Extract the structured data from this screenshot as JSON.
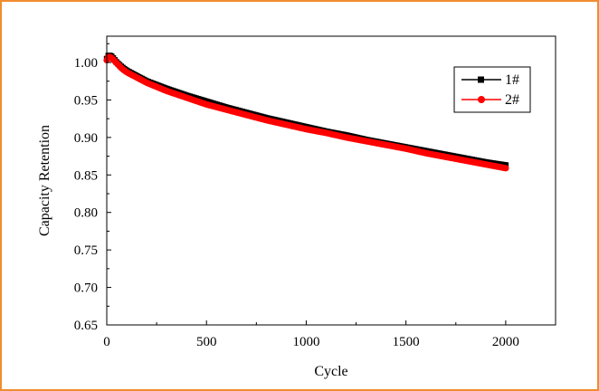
{
  "chart_data": {
    "type": "scatter",
    "title": "",
    "xlabel": "Cycle",
    "ylabel": "Capacity Retention",
    "xlim": [
      0,
      2250
    ],
    "ylim": [
      0.65,
      1.035
    ],
    "x_ticks": [
      0,
      500,
      1000,
      1500,
      2000
    ],
    "x_tick_labels": [
      "0",
      "500",
      "1000",
      "1500",
      "2000"
    ],
    "y_ticks": [
      0.65,
      0.7,
      0.75,
      0.8,
      0.85,
      0.9,
      0.95,
      1.0
    ],
    "y_tick_labels": [
      "0.65",
      "0.70",
      "0.75",
      "0.80",
      "0.85",
      "0.90",
      "0.95",
      "1.00"
    ],
    "grid": false,
    "legend_position": "top-right",
    "series": [
      {
        "name": "1#",
        "color": "#000000",
        "marker": "square",
        "x": [
          0,
          10,
          25,
          50,
          75,
          100,
          150,
          200,
          300,
          400,
          500,
          600,
          700,
          800,
          900,
          1000,
          1100,
          1200,
          1300,
          1400,
          1500,
          1600,
          1700,
          1800,
          1900,
          2000
        ],
        "y": [
          1.005,
          1.01,
          1.008,
          1.0,
          0.994,
          0.989,
          0.982,
          0.975,
          0.965,
          0.956,
          0.948,
          0.94,
          0.933,
          0.926,
          0.92,
          0.914,
          0.908,
          0.903,
          0.897,
          0.892,
          0.887,
          0.882,
          0.877,
          0.872,
          0.867,
          0.863
        ]
      },
      {
        "name": "2#",
        "color": "#FF0000",
        "marker": "circle",
        "x": [
          0,
          10,
          25,
          50,
          75,
          100,
          150,
          200,
          300,
          400,
          500,
          600,
          700,
          800,
          900,
          1000,
          1100,
          1200,
          1300,
          1400,
          1500,
          1600,
          1700,
          1800,
          1900,
          2000
        ],
        "y": [
          1.003,
          1.008,
          1.006,
          0.999,
          0.992,
          0.987,
          0.98,
          0.973,
          0.962,
          0.953,
          0.944,
          0.937,
          0.93,
          0.923,
          0.917,
          0.911,
          0.906,
          0.9,
          0.895,
          0.89,
          0.885,
          0.879,
          0.874,
          0.869,
          0.864,
          0.859
        ]
      }
    ]
  }
}
